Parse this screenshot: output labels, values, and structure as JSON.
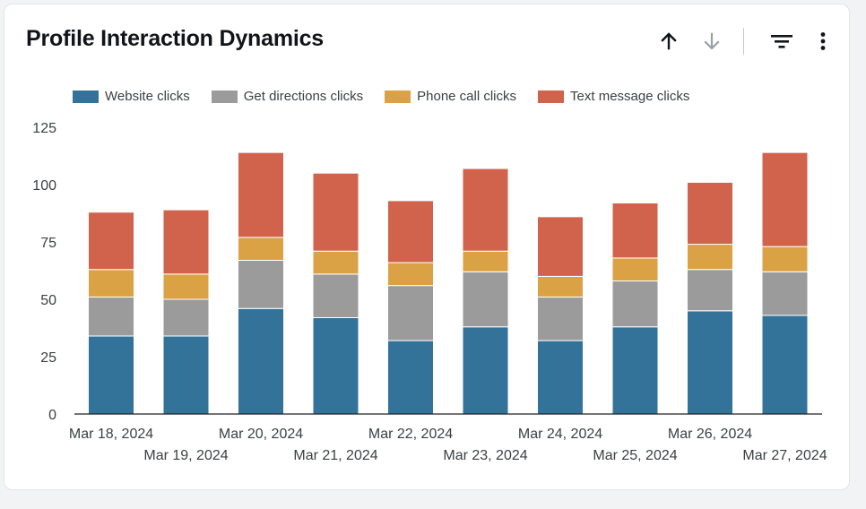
{
  "card": {
    "title": "Profile Interaction Dynamics",
    "toolbar": {
      "sort_up_icon": "arrow-up-icon",
      "sort_down_icon": "arrow-down-icon",
      "filter_icon": "filter-icon",
      "more_icon": "more-vert-icon"
    }
  },
  "chart_data": {
    "type": "bar",
    "stacked": true,
    "title": "Profile Interaction Dynamics",
    "xlabel": "",
    "ylabel": "",
    "ylim": [
      0,
      125
    ],
    "yticks": [
      0,
      25,
      50,
      75,
      100,
      125
    ],
    "grid": false,
    "legend_position": "top-left",
    "categories": [
      "Mar 18, 2024",
      "Mar 19, 2024",
      "Mar 20, 2024",
      "Mar 21, 2024",
      "Mar 22, 2024",
      "Mar 23, 2024",
      "Mar 24, 2024",
      "Mar 25, 2024",
      "Mar 26, 2024",
      "Mar 27, 2024"
    ],
    "series": [
      {
        "name": "Website clicks",
        "color": "#347399",
        "values": [
          34,
          34,
          46,
          42,
          32,
          38,
          32,
          38,
          45,
          43
        ]
      },
      {
        "name": "Get directions clicks",
        "color": "#9b9b9b",
        "values": [
          17,
          16,
          21,
          19,
          24,
          24,
          19,
          20,
          18,
          19
        ]
      },
      {
        "name": "Phone call clicks",
        "color": "#daa245",
        "values": [
          12,
          11,
          10,
          10,
          10,
          9,
          9,
          10,
          11,
          11
        ]
      },
      {
        "name": "Text message clicks",
        "color": "#d1624b",
        "values": [
          25,
          28,
          37,
          34,
          27,
          36,
          26,
          24,
          27,
          41
        ]
      }
    ]
  }
}
